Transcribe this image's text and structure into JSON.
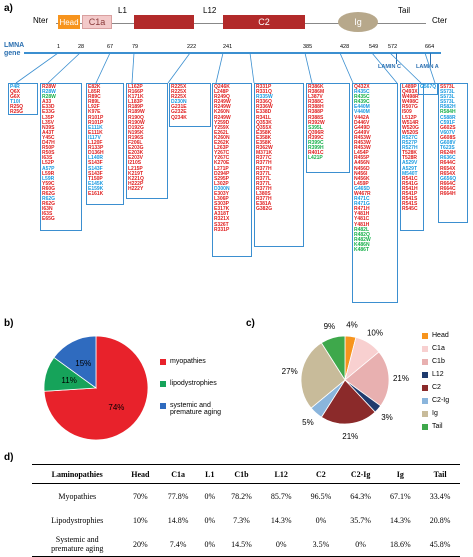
{
  "panels": {
    "a": "a)",
    "b": "b)",
    "c": "c)",
    "d": "d)"
  },
  "protein": {
    "nter": "Nter",
    "cter": "Cter",
    "tail": "Tail",
    "head": "Head",
    "c1a": "C1a",
    "l1": "L1",
    "l12": "L12",
    "c2": "C2",
    "ig": "Ig",
    "gene": "LMNA\ngene",
    "positions": [
      "1",
      "28",
      "67",
      "79",
      "222",
      "241",
      "385",
      "428",
      "549",
      "572",
      "664"
    ],
    "lamin_c": "LAMIN C",
    "lamin_a": "LAMIN A",
    "colors": {
      "head": "#f7941d",
      "c1a": "#f3c9c9",
      "c2": "#b22a2a",
      "ig": "#b7a88b",
      "line": "#3b8fd0"
    }
  },
  "mutation_columns": [
    [
      [
        "P4R",
        "b"
      ],
      [
        "Q6X",
        "r"
      ],
      [
        "G6X",
        "r"
      ],
      [
        "T10I",
        "b"
      ],
      [
        "R25Q",
        "r"
      ],
      [
        "R25G",
        "r"
      ],
      [
        "R25P",
        "r"
      ],
      [
        "R25W",
        "b"
      ],
      [
        "R25V",
        "b"
      ]
    ],
    [
      [
        "R28W",
        "r"
      ],
      [
        "R28W",
        "b"
      ],
      [
        "R28W",
        "g"
      ],
      [
        "A33",
        "r"
      ],
      [
        "E33D",
        "r"
      ],
      [
        "E33G",
        "r"
      ],
      [
        "L35P",
        "r"
      ],
      [
        "L35V",
        "r"
      ],
      [
        "N39S",
        "r"
      ],
      [
        "A43T",
        "r"
      ],
      [
        "Y45C",
        "r"
      ],
      [
        "D47H",
        "r"
      ],
      [
        "R50P",
        "r"
      ],
      [
        "R50S",
        "r"
      ],
      [
        "I63S",
        "r"
      ],
      [
        "L52P",
        "r"
      ],
      [
        "A57P",
        "b"
      ],
      [
        "L59R",
        "r"
      ],
      [
        "L59R",
        "b"
      ],
      [
        "Y59C",
        "r"
      ],
      [
        "R60G",
        "r"
      ],
      [
        "R62G",
        "r"
      ],
      [
        "R62G",
        "b"
      ],
      [
        "R62G",
        "r"
      ],
      [
        "I63N",
        "r"
      ],
      [
        "I63S",
        "r"
      ],
      [
        "E65G",
        "r"
      ]
    ],
    [
      [
        "E82K",
        "r"
      ],
      [
        "L85R",
        "r"
      ],
      [
        "R89C",
        "r"
      ],
      [
        "R89L",
        "r"
      ],
      [
        "L92F",
        "r"
      ],
      [
        "K97E",
        "r"
      ],
      [
        "R101P",
        "r"
      ],
      [
        "R101P",
        "r"
      ],
      [
        "E111K",
        "b"
      ],
      [
        "E111K",
        "r"
      ],
      [
        "I117V",
        "b"
      ],
      [
        "L120F",
        "r"
      ],
      [
        "R133P",
        "r"
      ],
      [
        "D136H",
        "r"
      ],
      [
        "L140R",
        "b"
      ],
      [
        "S143F",
        "r"
      ],
      [
        "S143F",
        "b"
      ],
      [
        "S143F",
        "r"
      ],
      [
        "T150P",
        "r"
      ],
      [
        "E145K",
        "b"
      ],
      [
        "E159K",
        "b"
      ],
      [
        "E161K",
        "r"
      ]
    ],
    [
      [
        "L162P",
        "r"
      ],
      [
        "R166P",
        "r"
      ],
      [
        "K171K",
        "r"
      ],
      [
        "L183P",
        "r"
      ],
      [
        "R189P",
        "r"
      ],
      [
        "R189W",
        "r"
      ],
      [
        "R190Q",
        "r"
      ],
      [
        "R190W",
        "r"
      ],
      [
        "D192G",
        "r"
      ],
      [
        "N195K",
        "r"
      ],
      [
        "R196S",
        "r"
      ],
      [
        "F206L",
        "r"
      ],
      [
        "E203G",
        "r"
      ],
      [
        "E203K",
        "r"
      ],
      [
        "E203V",
        "r"
      ],
      [
        "I210S",
        "r"
      ],
      [
        "L215P",
        "r"
      ],
      [
        "K219T",
        "r"
      ],
      [
        "K221Q",
        "r"
      ],
      [
        "H222P",
        "r"
      ],
      [
        "H222Y",
        "r"
      ]
    ],
    [
      [
        "R225X",
        "r"
      ],
      [
        "R225X",
        "r"
      ],
      [
        "R225X",
        "r"
      ],
      [
        "D230N",
        "b"
      ],
      [
        "G231E",
        "r"
      ],
      [
        "G232E",
        "r"
      ],
      [
        "Q234K",
        "r"
      ]
    ],
    [
      [
        "Q246K",
        "r"
      ],
      [
        "L248P",
        "r"
      ],
      [
        "R249Q",
        "r"
      ],
      [
        "R249W",
        "r"
      ],
      [
        "R249W",
        "r"
      ],
      [
        "K260N",
        "r"
      ],
      [
        "R249W",
        "r"
      ],
      [
        "Y259D",
        "r"
      ],
      [
        "Y259X",
        "r"
      ],
      [
        "E262L",
        "r"
      ],
      [
        "K260N",
        "r"
      ],
      [
        "E262K",
        "r"
      ],
      [
        "L263P",
        "r"
      ],
      [
        "Y267C",
        "r"
      ],
      [
        "Y267C",
        "r"
      ],
      [
        "K270E",
        "r"
      ],
      [
        "L271P",
        "r"
      ],
      [
        "D294P",
        "r"
      ],
      [
        "S295P",
        "r"
      ],
      [
        "L302P",
        "r"
      ],
      [
        "D300N",
        "b"
      ],
      [
        "E303Y",
        "r"
      ],
      [
        "L306P",
        "r"
      ],
      [
        "S303P",
        "r"
      ],
      [
        "E317K",
        "r"
      ],
      [
        "A318T",
        "r"
      ],
      [
        "R321X",
        "r"
      ],
      [
        "S326T",
        "r"
      ],
      [
        "R331P",
        "r"
      ]
    ],
    [
      [
        "R331P",
        "r"
      ],
      [
        "R331Q",
        "r"
      ],
      [
        "R335W",
        "b"
      ],
      [
        "R336Q",
        "r"
      ],
      [
        "R336W",
        "r"
      ],
      [
        "E338D",
        "r"
      ],
      [
        "R341L",
        "r"
      ],
      [
        "Q353K",
        "r"
      ],
      [
        "Q355X",
        "r"
      ],
      [
        "E358K",
        "r"
      ],
      [
        "E358K",
        "r"
      ],
      [
        "E358K",
        "r"
      ],
      [
        "R362W",
        "r"
      ],
      [
        "M371K",
        "r"
      ],
      [
        "R377C",
        "r"
      ],
      [
        "R377H",
        "r"
      ],
      [
        "R377H",
        "r"
      ],
      [
        "R377L",
        "r"
      ],
      [
        "R377L",
        "r"
      ],
      [
        "R377L",
        "r"
      ],
      [
        "R377H",
        "r"
      ],
      [
        "L380S",
        "r"
      ],
      [
        "R377H",
        "r"
      ],
      [
        "E381A",
        "r"
      ],
      [
        "G382G",
        "r"
      ]
    ],
    [
      [
        "R386K",
        "r"
      ],
      [
        "R386M",
        "r"
      ],
      [
        "L387V",
        "r"
      ],
      [
        "R388C",
        "r"
      ],
      [
        "R388H",
        "r"
      ],
      [
        "R388P",
        "r"
      ],
      [
        "R388S",
        "r"
      ],
      [
        "R392W",
        "r"
      ],
      [
        "S395L",
        "g"
      ],
      [
        "Q396R",
        "r"
      ],
      [
        "R399C",
        "r"
      ],
      [
        "R399C",
        "g"
      ],
      [
        "R399H",
        "g"
      ],
      [
        "R401C",
        "r"
      ],
      [
        "L421P",
        "g"
      ]
    ],
    [
      [
        "Q432X",
        "r"
      ],
      [
        "R435C",
        "b"
      ],
      [
        "R435C",
        "g"
      ],
      [
        "R439C",
        "g"
      ],
      [
        "E440M",
        "b"
      ],
      [
        "V440M",
        "b"
      ],
      [
        "V442A",
        "r"
      ],
      [
        "D446V",
        "r"
      ],
      [
        "G449D",
        "r"
      ],
      [
        "G449V",
        "r"
      ],
      [
        "R453W",
        "r"
      ],
      [
        "R453W",
        "r"
      ],
      [
        "R453W",
        "r"
      ],
      [
        "L454P",
        "r"
      ],
      [
        "R455P",
        "r"
      ],
      [
        "A456N",
        "r"
      ],
      [
        "N456D",
        "r"
      ],
      [
        "N456I",
        "r"
      ],
      [
        "N456K",
        "r"
      ],
      [
        "L459P",
        "r"
      ],
      [
        "G465D",
        "b"
      ],
      [
        "W467R",
        "r"
      ],
      [
        "R471C",
        "b"
      ],
      [
        "R471G",
        "b"
      ],
      [
        "R471H",
        "r"
      ],
      [
        "Y481H",
        "r"
      ],
      [
        "Y481C",
        "r"
      ],
      [
        "Y481H",
        "r"
      ],
      [
        "R482L",
        "g"
      ],
      [
        "R482Q",
        "g"
      ],
      [
        "R482W",
        "g"
      ],
      [
        "K486N",
        "g"
      ],
      [
        "K486T",
        "g"
      ]
    ],
    [
      [
        "L489P",
        "r"
      ],
      [
        "Q493X",
        "r"
      ],
      [
        "W498R",
        "r"
      ],
      [
        "W498C",
        "r"
      ],
      [
        "R507G",
        "r"
      ],
      [
        "I509",
        "r"
      ],
      [
        "L512P",
        "r"
      ],
      [
        "W514R",
        "r"
      ],
      [
        "W520G",
        "r"
      ],
      [
        "W520S",
        "r"
      ],
      [
        "R527C",
        "b"
      ],
      [
        "R527P",
        "b"
      ],
      [
        "R527H",
        "b"
      ],
      [
        "T528K",
        "r"
      ],
      [
        "T528R",
        "r"
      ],
      [
        "A529V",
        "b"
      ],
      [
        "A529T",
        "b"
      ],
      [
        "M540T",
        "b"
      ],
      [
        "R541C",
        "r"
      ],
      [
        "R541G",
        "r"
      ],
      [
        "R541H",
        "r"
      ],
      [
        "R541P",
        "r"
      ],
      [
        "R541S",
        "r"
      ],
      [
        "R541S",
        "r"
      ],
      [
        "R545C",
        "r"
      ]
    ],
    [
      [
        "G567Q",
        "b"
      ]
    ],
    [
      [
        "S573L",
        "r"
      ],
      [
        "S573L",
        "b"
      ],
      [
        "S573L",
        "b"
      ],
      [
        "S573L",
        "b"
      ],
      [
        "R582H",
        "b"
      ],
      [
        "R584H",
        "g"
      ],
      [
        "C588R",
        "b"
      ],
      [
        "C591F",
        "b"
      ],
      [
        "G602S",
        "r"
      ],
      [
        "V607V",
        "b"
      ],
      [
        "G608S",
        "r"
      ],
      [
        "G608V",
        "b"
      ],
      [
        "T623S",
        "b"
      ],
      [
        "R624H",
        "r"
      ],
      [
        "R636C",
        "b"
      ],
      [
        "R644C",
        "r"
      ],
      [
        "R654X",
        "r"
      ],
      [
        "R654X",
        "r"
      ],
      [
        "G656Q",
        "b"
      ],
      [
        "R664C",
        "r"
      ],
      [
        "R664C",
        "r"
      ],
      [
        "R664H",
        "r"
      ]
    ]
  ],
  "chart_data": [
    {
      "type": "pie",
      "id": "b",
      "categories": [
        "myopathies",
        "lipodystrophies",
        "systemic and\npremature aging"
      ],
      "values": [
        74,
        11,
        15
      ],
      "labels": [
        "74%",
        "11%",
        "15%"
      ],
      "colors": [
        "#e8222b",
        "#16a35a",
        "#2f6bbf"
      ],
      "legend": "right"
    },
    {
      "type": "pie",
      "id": "c",
      "categories": [
        "Head",
        "C1a",
        "C1b",
        "L12",
        "C2",
        "C2-Ig",
        "Ig",
        "Tail"
      ],
      "values": [
        4,
        10,
        21,
        3,
        21,
        5,
        27,
        9
      ],
      "labels": [
        "4%",
        "10%",
        "21%",
        "3%",
        "21%",
        "5%",
        "27%",
        "9%"
      ],
      "colors": [
        "#f7941d",
        "#f8d0d0",
        "#e8b0b0",
        "#1f3b6e",
        "#8b2a2a",
        "#8ab5dc",
        "#c8bb9a",
        "#3ea84b"
      ],
      "legend": "right"
    }
  ],
  "table": {
    "headers": [
      "Laminopathies",
      "Head",
      "C1a",
      "L1",
      "C1b",
      "L12",
      "C2",
      "C2-Ig",
      "Ig",
      "Tail"
    ],
    "rows": [
      [
        "Myopathies",
        "70%",
        "77.8%",
        "0%",
        "78.2%",
        "85.7%",
        "96.5%",
        "64.3%",
        "67.1%",
        "33.4%"
      ],
      [
        "Lipodystrophies",
        "10%",
        "14.8%",
        "0%",
        "7.3%",
        "14.3%",
        "0%",
        "35.7%",
        "14.3%",
        "20.8%"
      ],
      [
        "Systemic and\npremature aging",
        "20%",
        "7.4%",
        "0%",
        "14.5%",
        "0%",
        "3.5%",
        "0%",
        "18.6%",
        "45.8%"
      ]
    ]
  }
}
